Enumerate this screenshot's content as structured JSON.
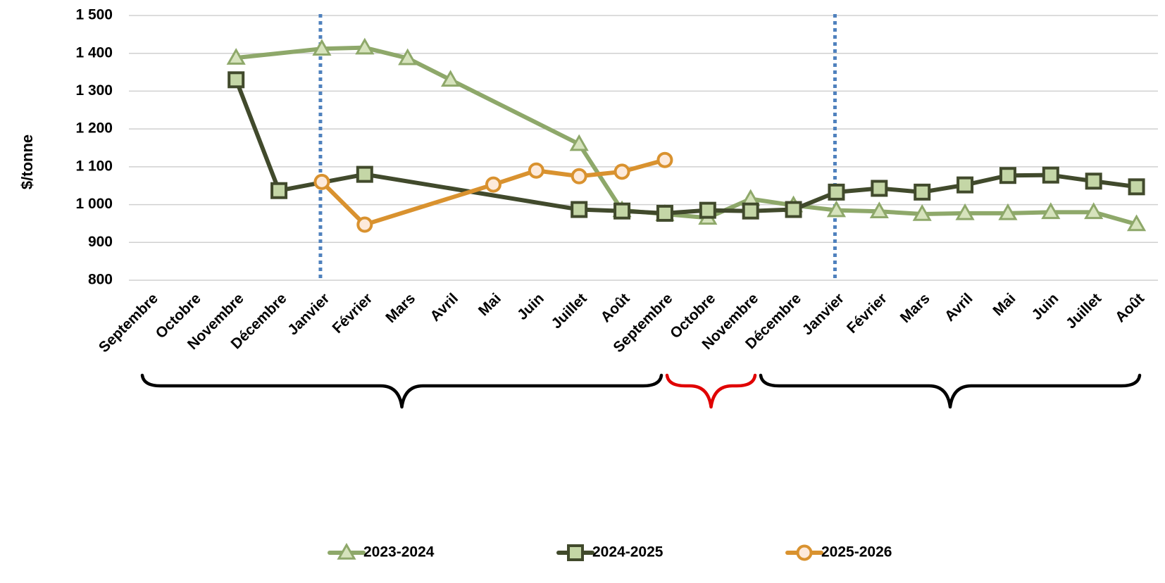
{
  "chart_data": {
    "type": "line",
    "title": "",
    "xlabel": "",
    "ylabel": "$/tonne",
    "ylim": [
      800,
      1500
    ],
    "yticks": [
      800,
      900,
      1000,
      1100,
      1200,
      1300,
      1400,
      1500
    ],
    "ytick_labels": [
      "800",
      "900",
      "1 000",
      "1 100",
      "1 200",
      "1 300",
      "1 400",
      "1 500"
    ],
    "categories": [
      "Septembre",
      "Octobre",
      "Novembre",
      "Décembre",
      "Janvier",
      "Février",
      "Mars",
      "Avril",
      "Mai",
      "Juin",
      "Juillet",
      "Août",
      "Septembre",
      "Octobre",
      "Novembre",
      "Décembre",
      "Janvier",
      "Février",
      "Mars",
      "Avril",
      "Mai",
      "Juin",
      "Juillet",
      "Août"
    ],
    "grid": true,
    "legend_position": "bottom",
    "series": [
      {
        "name": "2023-2024",
        "color": "#8ea86a",
        "marker": "triangle",
        "values": [
          null,
          null,
          1388,
          null,
          1412,
          1415,
          1387,
          1330,
          null,
          null,
          1160,
          985,
          975,
          965,
          1015,
          998,
          985,
          982,
          975,
          977,
          977,
          980,
          980,
          948
        ]
      },
      {
        "name": "2024-2025",
        "color": "#414a2c",
        "marker": "square",
        "values": [
          null,
          null,
          1330,
          1037,
          null,
          1080,
          null,
          null,
          null,
          null,
          987,
          983,
          977,
          985,
          983,
          987,
          1033,
          1043,
          1033,
          1052,
          1077,
          1078,
          1062,
          1047
        ]
      },
      {
        "name": "2025-2026",
        "color": "#d9922f",
        "marker": "circle",
        "values": [
          null,
          null,
          null,
          null,
          1060,
          947,
          null,
          null,
          1053,
          1090,
          1075,
          1087,
          1118,
          null,
          null,
          null,
          null,
          null,
          null,
          null,
          null,
          null,
          null,
          null
        ]
      }
    ],
    "reference_lines": [
      {
        "type": "vertical",
        "at_category_index": 4,
        "style": "dotted",
        "color": "#4f81bd"
      },
      {
        "type": "vertical",
        "at_category_index": 16,
        "style": "dotted",
        "color": "#4f81bd"
      }
    ],
    "braces": [
      {
        "from_index": 0,
        "to_index": 12,
        "color": "#000000"
      },
      {
        "from_index": 12,
        "to_index": 14,
        "color": "#e00000"
      },
      {
        "from_index": 14,
        "to_index": 23,
        "color": "#000000"
      }
    ]
  }
}
